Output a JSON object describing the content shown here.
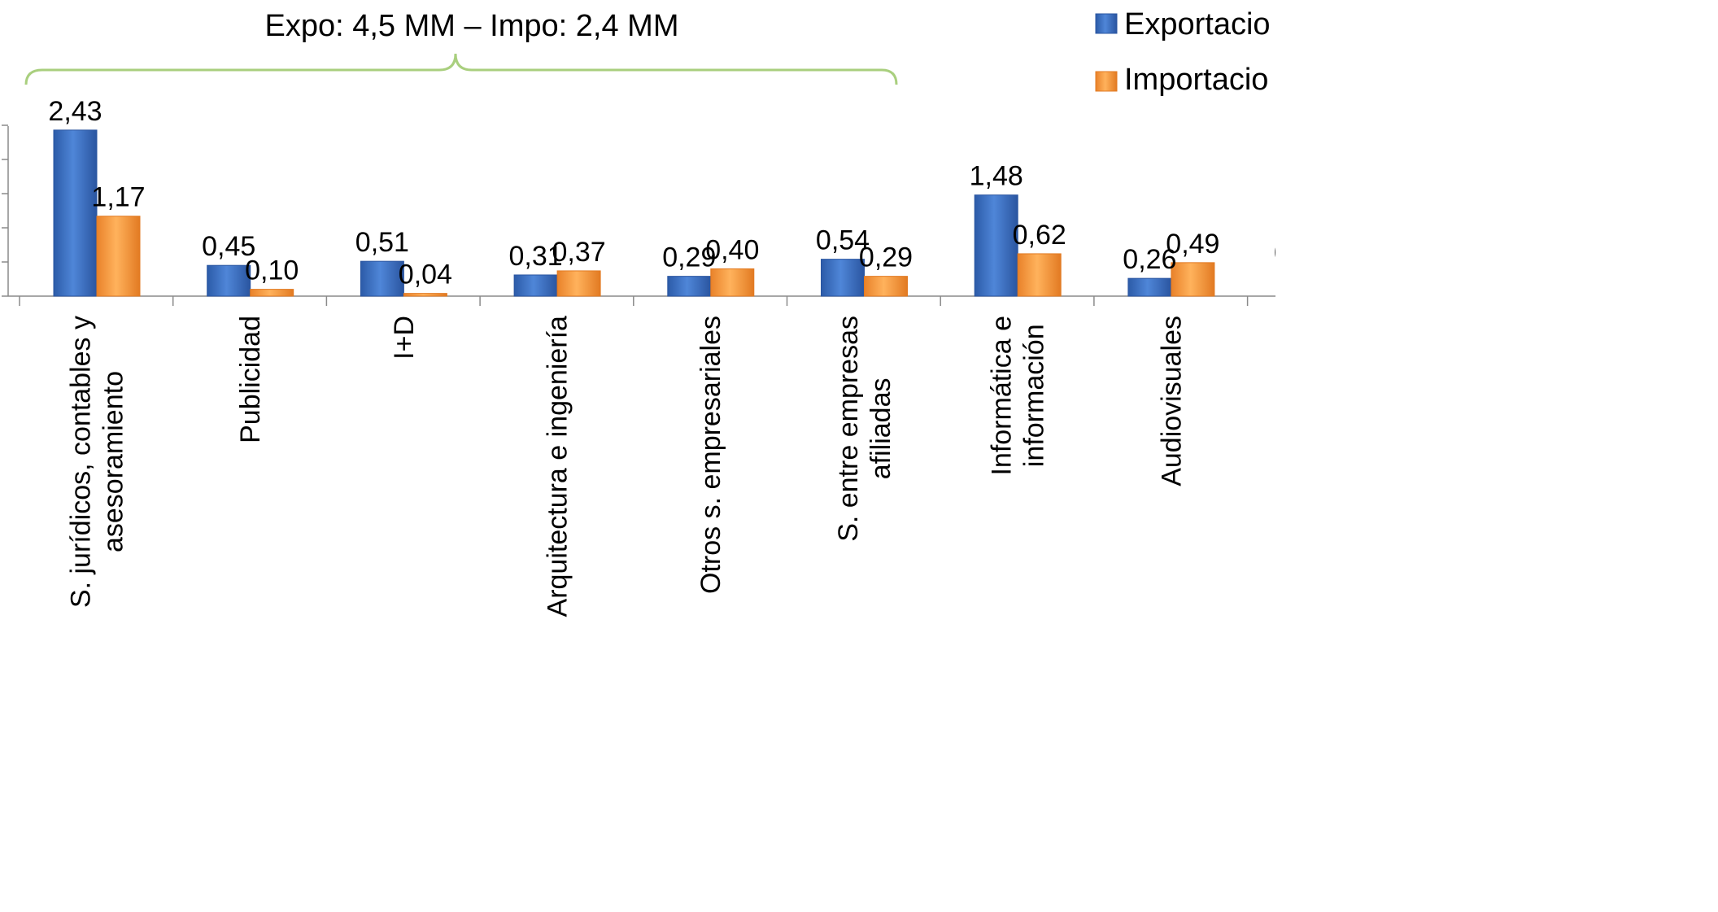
{
  "chart_data": {
    "type": "bar",
    "title": "",
    "subtitle": "Expo: 4,5 MM – Impo: 2,4 MM",
    "xlabel": "",
    "ylabel": "",
    "ylim": [
      0,
      2.5
    ],
    "grid": false,
    "legend_position": "top-right",
    "categories": [
      [
        "S. jurídicos, contables y",
        "asesoramiento"
      ],
      [
        "Publicidad"
      ],
      [
        "I+D"
      ],
      [
        "Arquitectura e ingeniería"
      ],
      [
        "Otros s. empresariales"
      ],
      [
        "S. entre empresas",
        "afiliadas"
      ],
      [
        "Informática e",
        "información"
      ],
      [
        "Audiovisuales"
      ]
    ],
    "series": [
      {
        "name": "Exportacio",
        "color": "#3A6FC4",
        "values": [
          2.43,
          0.45,
          0.51,
          0.31,
          0.29,
          0.54,
          1.48,
          0.26
        ],
        "labels": [
          "2,43",
          "0,45",
          "0,51",
          "0,31",
          "0,29",
          "0,54",
          "1,48",
          "0,26"
        ]
      },
      {
        "name": "Importacio",
        "color": "#F79A3A",
        "values": [
          1.17,
          0.1,
          0.04,
          0.37,
          0.4,
          0.29,
          0.62,
          0.49
        ],
        "labels": [
          "1,17",
          "0,10",
          "0,04",
          "0,37",
          "0,40",
          "0,29",
          "0,62",
          "0,49"
        ]
      }
    ],
    "bracket_color": "#A9CF7E",
    "extra_label": "0"
  }
}
